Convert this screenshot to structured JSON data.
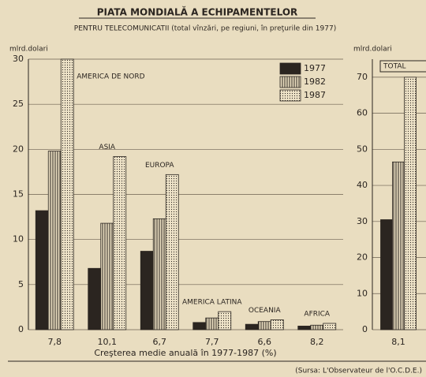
{
  "title": "PIATA MONDIALĂ A ECHIPAMENTELOR",
  "subtitle": "PENTRU TELECOMUNICATII (total vînzări, pe regiuni, în preţurile din 1977)",
  "x_label": "Creşterea medie anuală în 1977-1987 (%)",
  "source": "(Sursa: L'Observateur de l'O.C.D.E.)",
  "chart_data": [
    {
      "type": "bar",
      "y_label": "mlrd.dolari",
      "categories": [
        "AMERICA DE NORD",
        "ASIA",
        "EUROPA",
        "AMERICA LATINA",
        "OCEANIA",
        "AFRICA"
      ],
      "growth_labels": [
        "7,8",
        "10,1",
        "6,7",
        "7,7",
        "6,6",
        "8,2"
      ],
      "series": [
        {
          "name": "1977",
          "color": "#2b2520",
          "pattern": "solid",
          "values": [
            13.2,
            6.8,
            8.7,
            0.8,
            0.6,
            0.4
          ]
        },
        {
          "name": "1982",
          "color": "#8a8070",
          "pattern": "stripes",
          "values": [
            19.8,
            11.8,
            12.3,
            1.3,
            0.9,
            0.5
          ]
        },
        {
          "name": "1987",
          "color": "#a89c84",
          "pattern": "dots",
          "values": [
            30,
            19.2,
            17.2,
            2.0,
            1.1,
            0.7
          ]
        }
      ],
      "ylim": [
        0,
        30
      ],
      "yticks": [
        0,
        5,
        10,
        15,
        20,
        25,
        30
      ],
      "grid": true,
      "legend": "upper right"
    },
    {
      "type": "bar",
      "y_label": "mlrd.dolari",
      "title": "TOTAL",
      "growth_labels": [
        "8,1"
      ],
      "series": [
        {
          "name": "1977",
          "color": "#2b2520",
          "pattern": "solid",
          "values": [
            30.5
          ]
        },
        {
          "name": "1982",
          "color": "#8a8070",
          "pattern": "stripes",
          "values": [
            46.5
          ]
        },
        {
          "name": "1987",
          "color": "#a89c84",
          "pattern": "dots",
          "values": [
            70
          ]
        }
      ],
      "ylim": [
        0,
        75
      ],
      "yticks": [
        0,
        10,
        20,
        30,
        40,
        50,
        60,
        70
      ],
      "grid": true
    }
  ]
}
